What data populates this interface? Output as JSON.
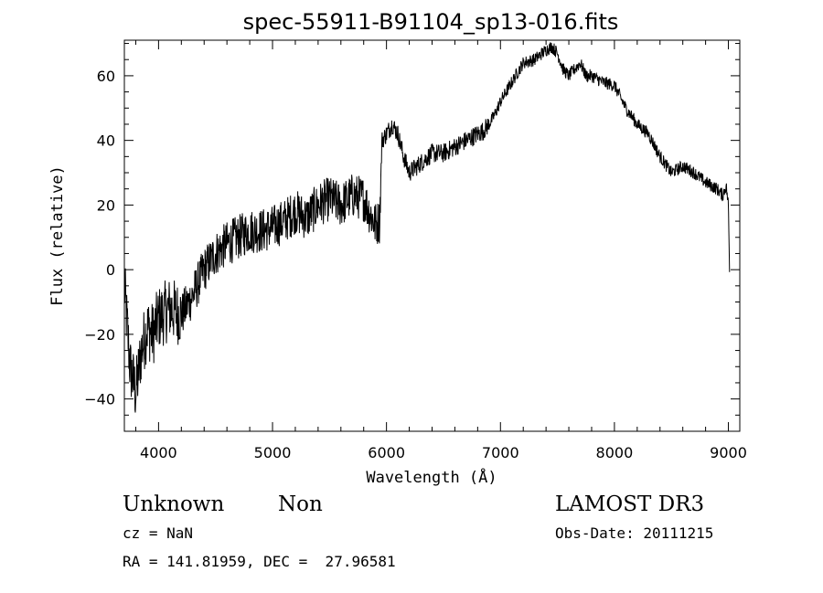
{
  "chart_data": {
    "type": "line",
    "title": "spec-55911-B91104_sp13-016.fits",
    "xlabel": "Wavelength (Å)",
    "ylabel": "Flux (relative)",
    "xlim": [
      3700,
      9100
    ],
    "ylim": [
      -50,
      71
    ],
    "xticks": [
      4000,
      5000,
      6000,
      7000,
      8000,
      9000
    ],
    "yticks": [
      -40,
      -20,
      0,
      20,
      40,
      60
    ],
    "xtick_labels": [
      "4000",
      "5000",
      "6000",
      "7000",
      "8000",
      "9000"
    ],
    "ytick_labels": [
      "−40",
      "−20",
      "0",
      "20",
      "40",
      "60"
    ],
    "grid": false,
    "legend": "none",
    "series": [
      {
        "x": [
          3700,
          3750,
          3800,
          3850,
          3900,
          3950,
          4000,
          4100,
          4200,
          4300,
          4400,
          4500,
          4600,
          4700,
          4800,
          4900,
          5000,
          5100,
          5200,
          5300,
          5400,
          5500,
          5600,
          5700,
          5800,
          5900,
          5940,
          5960,
          6000,
          6050,
          6100,
          6150,
          6200,
          6300,
          6400,
          6500,
          6600,
          6700,
          6800,
          6850,
          6900,
          6950,
          7000,
          7100,
          7200,
          7300,
          7400,
          7450,
          7500,
          7550,
          7600,
          7650,
          7700,
          7750,
          7800,
          7900,
          8000,
          8100,
          8200,
          8300,
          8400,
          8500,
          8600,
          8700,
          8800,
          8900,
          8950,
          8980,
          9000,
          9010
        ],
        "y": [
          -5,
          -30,
          -38,
          -25,
          -18,
          -20,
          -15,
          -12,
          -14,
          -8,
          0,
          5,
          8,
          10,
          12,
          12,
          13,
          15,
          18,
          16,
          20,
          22,
          20,
          23,
          22,
          14,
          15,
          40,
          42,
          45,
          42,
          35,
          30,
          33,
          36,
          36,
          38,
          40,
          42,
          43,
          45,
          48,
          52,
          58,
          64,
          65,
          68,
          69,
          67,
          62,
          60,
          62,
          64,
          60,
          60,
          58,
          57,
          50,
          45,
          42,
          35,
          30,
          32,
          30,
          27,
          25,
          23,
          26,
          20,
          0
        ],
        "color": "#000000"
      }
    ]
  },
  "labels": {
    "object_type": "Unknown",
    "object_class": "Non",
    "survey": "LAMOST DR3",
    "cz": "cz = NaN",
    "obs_date": "Obs-Date: 20111215",
    "coords": "RA = 141.81959, DEC =  27.96581"
  }
}
